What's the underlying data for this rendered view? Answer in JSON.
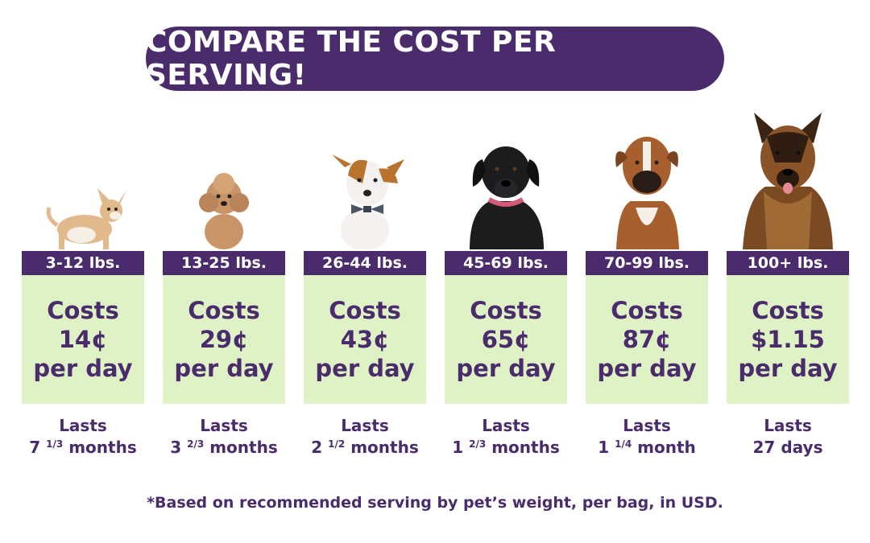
{
  "header": {
    "title": "COMPARE THE COST PER SERVING!"
  },
  "colors": {
    "purple": "#4a2c6d",
    "green_box": "#dff2c6"
  },
  "tiers": [
    {
      "weight": "3-12 lbs.",
      "cost_word": "Costs",
      "price": "14¢",
      "per": "per day",
      "lasts_word": "Lasts",
      "duration_whole": "7",
      "duration_fraction": "1/3",
      "duration_unit": "months",
      "dog_icon": "chihuahua-icon"
    },
    {
      "weight": "13-25 lbs.",
      "cost_word": "Costs",
      "price": "29¢",
      "per": "per day",
      "lasts_word": "Lasts",
      "duration_whole": "3",
      "duration_fraction": "2/3",
      "duration_unit": "months",
      "dog_icon": "poodle-icon"
    },
    {
      "weight": "26-44 lbs.",
      "cost_word": "Costs",
      "price": "43¢",
      "per": "per day",
      "lasts_word": "Lasts",
      "duration_whole": "2",
      "duration_fraction": "1/2",
      "duration_unit": "months",
      "dog_icon": "jack-russell-icon"
    },
    {
      "weight": "45-69 lbs.",
      "cost_word": "Costs",
      "price": "65¢",
      "per": "per day",
      "lasts_word": "Lasts",
      "duration_whole": "1",
      "duration_fraction": "2/3",
      "duration_unit": "months",
      "dog_icon": "labrador-icon"
    },
    {
      "weight": "70-99 lbs.",
      "cost_word": "Costs",
      "price": "87¢",
      "per": "per day",
      "lasts_word": "Lasts",
      "duration_whole": "1",
      "duration_fraction": "1/4",
      "duration_unit": "month",
      "dog_icon": "boxer-icon"
    },
    {
      "weight": "100+ lbs.",
      "cost_word": "Costs",
      "price": "$1.15",
      "per": "per day",
      "lasts_word": "Lasts",
      "duration_whole": "27",
      "duration_fraction": "",
      "duration_unit": "days",
      "dog_icon": "german-shepherd-icon"
    }
  ],
  "footnote": "*Based on recommended serving by pet’s weight, per bag, in USD."
}
